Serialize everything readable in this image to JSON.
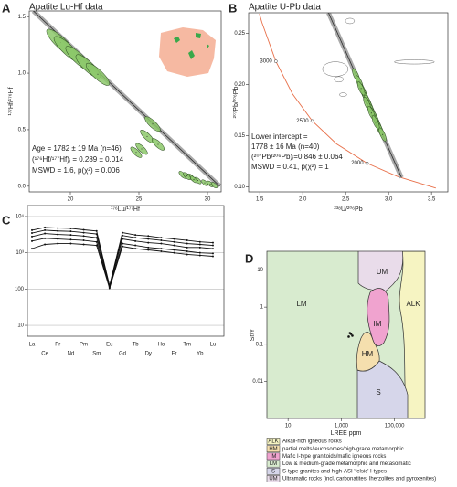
{
  "chart_data": [
    {
      "type": "scatter",
      "panel": "A",
      "title": "Apatite Lu-Hf data",
      "xlabel": "¹⁷⁶Lu/¹⁷⁷Hf",
      "ylabel": "¹⁷⁷Hf/¹⁷⁶Hf",
      "xlim": [
        17,
        31
      ],
      "ylim": [
        -0.05,
        1.55
      ],
      "xticks": [
        20,
        25,
        30
      ],
      "yticks": [
        {
          "value": 0,
          "label": "0.0"
        },
        {
          "value": 0.5,
          "label": "0.5"
        },
        {
          "value": 1,
          "label": "1.0"
        },
        {
          "value": 1.5,
          "label": "1.5"
        }
      ],
      "color": "#8cc86a",
      "x": [
        19.3,
        19.8,
        20.6,
        21.3,
        22.0,
        26.0,
        25.6,
        26.4,
        25.2,
        24.8,
        28.2,
        28.8,
        29.3,
        29.8,
        30.2,
        30.5,
        29.0,
        28.5
      ],
      "y": [
        1.27,
        1.21,
        1.13,
        1.06,
        0.99,
        0.55,
        0.44,
        0.37,
        0.33,
        0.3,
        0.1,
        0.08,
        0.05,
        0.03,
        0.02,
        0.01,
        0.06,
        0.09
      ],
      "fit": {
        "x": [
          17.3,
          30.9
        ],
        "y": [
          1.55,
          0
        ]
      },
      "annotations": [
        "Age = 1782 ± 19 Ma (n=46)",
        "(¹⁷⁶Hf/¹⁷⁷Hf)ᵢ = 0.289 ± 0.014",
        "MSWD = 1.6, p(χ²) = 0.006"
      ]
    },
    {
      "type": "scatter",
      "panel": "B",
      "title": "Apatite U-Pb data",
      "xlabel": "²³⁸U/²⁰⁶Pb",
      "ylabel": "²⁰⁷Pb/²⁰⁶Pb",
      "xlim": [
        1.37,
        3.69
      ],
      "ylim": [
        0.095,
        0.27
      ],
      "xticks": [
        1.5,
        {
          "value": 2,
          "label": "2.0"
        },
        2.5,
        {
          "value": 3,
          "label": "3.0"
        },
        3.5
      ],
      "yticks": [
        {
          "value": 0.1,
          "label": "0.10"
        },
        0.15,
        {
          "value": 0.2,
          "label": "0.20"
        },
        0.25
      ],
      "color": "#8cc86a",
      "x": [
        2.62,
        2.66,
        2.7,
        2.72,
        2.74,
        2.76,
        2.78,
        2.8,
        2.82,
        2.84,
        2.86,
        2.88,
        2.9,
        2.93,
        2.68,
        2.75,
        2.8,
        2.85
      ],
      "y": [
        0.209,
        0.202,
        0.194,
        0.19,
        0.186,
        0.183,
        0.179,
        0.175,
        0.171,
        0.168,
        0.164,
        0.16,
        0.156,
        0.151,
        0.196,
        0.181,
        0.172,
        0.163
      ],
      "excluded_color": "#ffffff",
      "excluded_x": [
        2.55,
        2.38,
        2.47,
        2.42,
        3.3
      ],
      "excluded_y": [
        0.262,
        0.215,
        0.19,
        0.205,
        0.222
      ],
      "fit": {
        "x": [
          2.3,
          3.15
        ],
        "y": [
          0.27,
          0.109
        ]
      },
      "concordia": {
        "color": "#e8704a",
        "x": [
          3.55,
          3.105,
          2.749,
          2.394,
          2.111,
          1.88,
          1.687,
          1.525,
          1.496
        ],
        "y": [
          0.0987,
          0.11,
          0.123,
          0.1419,
          0.1643,
          0.1909,
          0.2226,
          0.2605,
          0.269
        ]
      },
      "ages": [
        3000,
        2500,
        2000
      ],
      "age_x": [
        1.687,
        2.111,
        2.749
      ],
      "age_y": [
        0.2226,
        0.1643,
        0.123
      ],
      "annotations": [
        "Lower intercept =",
        "1778 ± 16 Ma (n=40)",
        "(²⁰⁷Pb/²⁰⁶Pb)ᵢ=0.846 ± 0.064",
        "MSWD = 0.41, p(χ²) = 1"
      ]
    },
    {
      "type": "line",
      "panel": "C",
      "ylog": true,
      "grid": true,
      "color": "#111111",
      "categories": [
        "La",
        "Ce",
        "Pr",
        "Nd",
        "Pm",
        "Sm",
        "Eu",
        "Gd",
        "Tb",
        "Dy",
        "Ho",
        "Er",
        "Tm",
        "Yb",
        "Lu"
      ],
      "ylim": [
        5,
        20000
      ],
      "yticks": [
        10,
        100,
        {
          "value": 1000,
          "label": "10³"
        },
        {
          "value": 10000,
          "label": "10⁴"
        }
      ],
      "series": [
        {
          "values": [
            3500,
            4200,
            4000,
            3900,
            3600,
            3300,
            120,
            3000,
            2600,
            2400,
            2200,
            2000,
            1800,
            1700,
            1600
          ]
        },
        {
          "values": [
            2800,
            3400,
            3200,
            3100,
            2900,
            2600,
            115,
            2400,
            2100,
            1900,
            1800,
            1600,
            1400,
            1400,
            1300
          ]
        },
        {
          "values": [
            2100,
            2500,
            2400,
            2300,
            2200,
            2000,
            110,
            1800,
            1600,
            1400,
            1300,
            1200,
            1100,
            1000,
            960
          ]
        },
        {
          "values": [
            4200,
            5000,
            4800,
            4700,
            4300,
            4000,
            125,
            3600,
            3100,
            2900,
            2600,
            2400,
            2200,
            2000,
            1900
          ]
        },
        {
          "values": [
            1300,
            1700,
            1800,
            1800,
            1700,
            1600,
            105,
            1500,
            1300,
            1200,
            1100,
            1000,
            900,
            850,
            800
          ]
        }
      ]
    },
    {
      "type": "scatter",
      "panel": "D",
      "xlog": true,
      "ylog": true,
      "xlabel": "LREE ppm",
      "ylabel": "Sr/Y",
      "xlim": [
        1.6,
        1400000
      ],
      "ylim": [
        0.001,
        32
      ],
      "xticks": [
        10,
        {
          "value": 1000,
          "label": "1,000"
        },
        {
          "value": 100000,
          "label": "100,000"
        }
      ],
      "yticks": [
        0.01,
        0.1,
        1,
        10
      ],
      "color": "#111111",
      "x": [
        1900,
        2300,
        2600,
        2100
      ],
      "y": [
        0.16,
        0.19,
        0.17,
        0.2
      ],
      "legend": [
        {
          "code": "ALK",
          "label": "Alkali-rich igneous rocks",
          "color": "#f6f4c2"
        },
        {
          "code": "HM",
          "label": "partial melts/leucosomes/high-grade metamorphic",
          "color": "#f5dfae"
        },
        {
          "code": "IM",
          "label": "Mafic I-type granitoids/mafic igneous rocks",
          "color": "#f0a3cf"
        },
        {
          "code": "LM",
          "label": "Low & medium-grade metamorphic and metasomatic",
          "color": "#d8ebcf"
        },
        {
          "code": "S",
          "label": "S-type granites and high-ASI 'felsic' I-types",
          "color": "#d6d6ea"
        },
        {
          "code": "UM",
          "label": "Ultramafic rocks (incl. carbonatites, lherzolites and pyroxenites)",
          "color": "#e9dcea"
        }
      ]
    }
  ]
}
